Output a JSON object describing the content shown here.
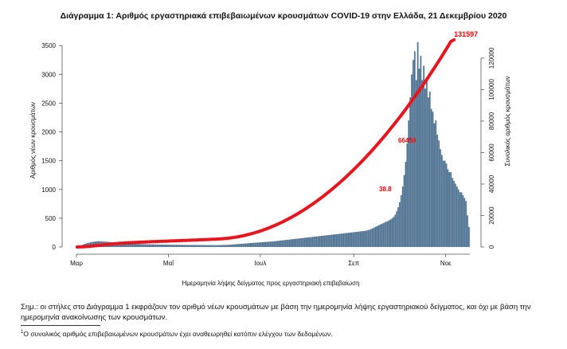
{
  "title": "Διάγραμμα 1: Αριθμός εργαστηριακά επιβεβαιωμένων κρουσμάτων COVID-19 στην Ελλάδα, 21 Δεκεμβρίου 2020",
  "note": "Σημ.: οι στήλες στο Διάγραμμα 1 εκφράζουν τον αριθμό νέων κρουσμάτων με βάση την ημερομηνία λήψης εργαστηριακού δείγματος, και όχι με βάση την ημερομηνία ανακοίνωσης των κρουσμάτων.",
  "footnote_mark": "1",
  "footnote": "Ο συνολικός αριθμός επιβεβαιωμένων κρουσμάτων έχει αναθεωρηθεί κατόπιν ελέγχου των δεδομένων.",
  "chart_data": {
    "type": "bar",
    "xlabel": "Ημερομηνία λήψης δείγματος προς εργαστηριακή επιβεβαίωση",
    "ylabel": "Αριθμός νέων κρουσμάτων",
    "y2label": "Συνολικός αριθμός κρουσμάτων",
    "ylim": [
      0,
      3600
    ],
    "y2lim": [
      0,
      131597
    ],
    "yticks": [
      "0",
      "500",
      "1000",
      "1500",
      "2000",
      "2500",
      "3000",
      "3500"
    ],
    "y2ticks": [
      "0",
      "20000",
      "40000",
      "60000",
      "80000",
      "100000",
      "120000"
    ],
    "x_tick_labels": [
      "Μαρ",
      "Μαΐ",
      "Ιουλ",
      "Σεπ",
      "Νοε"
    ],
    "x_tick_days": [
      0,
      61,
      122,
      184,
      245
    ],
    "bar_color": "#4a6f8f",
    "line_color": "#e8141e",
    "cumulative_label_color": "#ff0000",
    "series": [
      {
        "kind": "bar",
        "values": [
          10,
          18,
          25,
          30,
          42,
          55,
          60,
          68,
          75,
          82,
          88,
          92,
          95,
          98,
          100,
          100,
          98,
          96,
          94,
          92,
          90,
          88,
          85,
          82,
          80,
          78,
          75,
          72,
          70,
          68,
          66,
          64,
          62,
          60,
          58,
          57,
          56,
          55,
          54,
          53,
          52,
          52,
          51,
          50,
          49,
          48,
          47,
          46,
          46,
          45,
          45,
          44,
          44,
          43,
          43,
          42,
          42,
          42,
          41,
          41,
          40,
          40,
          40,
          39,
          39,
          39,
          38,
          38,
          38,
          37,
          37,
          37,
          36,
          36,
          36,
          36,
          35,
          35,
          35,
          35,
          34,
          34,
          34,
          34,
          34,
          34,
          33,
          33,
          33,
          33,
          33,
          33,
          33,
          33,
          33,
          34,
          34,
          35,
          36,
          37,
          38,
          40,
          42,
          44,
          46,
          48,
          50,
          52,
          54,
          56,
          58,
          60,
          62,
          64,
          66,
          68,
          70,
          72,
          74,
          76,
          78,
          80,
          82,
          84,
          86,
          88,
          90,
          92,
          94,
          96,
          98,
          100,
          103,
          106,
          109,
          112,
          115,
          118,
          121,
          124,
          127,
          130,
          133,
          136,
          139,
          142,
          145,
          148,
          151,
          154,
          157,
          160,
          163,
          166,
          169,
          172,
          175,
          178,
          181,
          184,
          187,
          190,
          193,
          196,
          199,
          202,
          205,
          208,
          211,
          214,
          217,
          220,
          223,
          226,
          229,
          232,
          235,
          238,
          241,
          244,
          247,
          250,
          253,
          256,
          259,
          262,
          265,
          268,
          271,
          274,
          277,
          280,
          287,
          293,
          300,
          313,
          325,
          338,
          350,
          363,
          375,
          388,
          400,
          413,
          425,
          438,
          450,
          464,
          480,
          500,
          522,
          560,
          620,
          690,
          780,
          900,
          1050,
          1250,
          1480,
          1800,
          2200,
          2600,
          3000,
          3250,
          3400,
          2900,
          3560,
          3100,
          3320,
          2900,
          3150,
          2750,
          2950,
          2600,
          2700,
          2400,
          2350,
          2150,
          2200,
          1950,
          1850,
          1700,
          1600,
          1500,
          1500,
          1450,
          1350,
          1300,
          1300,
          1200,
          1150,
          1100,
          1050,
          1000,
          950,
          950,
          900,
          850,
          800,
          550,
          350
        ]
      },
      {
        "kind": "line",
        "name": "cumulative",
        "values": [
          9,
          30,
          60,
          100,
          150,
          210,
          280,
          350,
          430,
          520,
          610,
          700,
          800,
          910,
          1020,
          1130,
          1240,
          1350,
          1460,
          1560,
          1650,
          1740,
          1830,
          1920,
          2000,
          2080,
          2160,
          2240,
          2310,
          2380,
          2450,
          2510,
          2570,
          2630,
          2690,
          2740,
          2790,
          2840,
          2890,
          2940,
          2990,
          3030,
          3070,
          3110,
          3150,
          3190,
          3230,
          3270,
          3310,
          3350,
          3390,
          3430,
          3470,
          3500,
          3540,
          3580,
          3610,
          3650,
          3690,
          3720,
          3760,
          3800,
          3840,
          3870,
          3910,
          3950,
          3990,
          4020,
          4060,
          4100,
          4140,
          4170,
          4210,
          4250,
          4290,
          4320,
          4360,
          4400,
          4440,
          4470,
          4510,
          4550,
          4590,
          4620,
          4660,
          4700,
          4740,
          4780,
          4820,
          4860,
          4900,
          4950,
          5000,
          5050,
          5110,
          5170,
          5240,
          5320,
          5400,
          5490,
          5590,
          5700,
          5820,
          5950,
          6090,
          6240,
          6400,
          6570,
          6750,
          6940,
          7140,
          7350,
          7570,
          7800,
          8040,
          8290,
          8550,
          8820,
          9100,
          9390,
          9690,
          10000,
          10320,
          10650,
          10990,
          11340,
          11700,
          12070,
          12450,
          12840,
          13240,
          13650,
          14070,
          14500,
          14940,
          15390,
          15850,
          16320,
          16800,
          17290,
          17790,
          18300,
          18820,
          19350,
          19890,
          20440,
          21000,
          21570,
          22150,
          22740,
          23340,
          23950,
          24570,
          25200,
          25840,
          26490,
          27150,
          27820,
          28500,
          29190,
          29890,
          30600,
          31320,
          32050,
          32790,
          33540,
          34300,
          35070,
          35850,
          36640,
          37440,
          38250,
          39070,
          39900,
          40740,
          41590,
          42450,
          43320,
          44200,
          45090,
          45990,
          46900,
          47820,
          48750,
          49690,
          50640,
          51600,
          52570,
          53550,
          54540,
          55540,
          56550,
          57570,
          58600,
          59640,
          60690,
          61750,
          62820,
          63900,
          64990,
          66090,
          67200,
          68320,
          69450,
          70590,
          71740,
          72900,
          74070,
          75250,
          76440,
          77640,
          78850,
          80070,
          81300,
          82540,
          83790,
          85050,
          86320,
          87600,
          88890,
          90190,
          91500,
          92820,
          94150,
          95490,
          96840,
          98200,
          99570,
          100950,
          102340,
          103740,
          105150,
          106570,
          108000,
          109440,
          110890,
          112350,
          113820,
          115300,
          116790,
          118290,
          119800,
          121320,
          122850,
          124390,
          125940,
          127500,
          129070,
          130650,
          131100,
          131597
        ]
      }
    ],
    "annotations": [
      {
        "text": "131597",
        "color": "#ff0000"
      },
      {
        "text": "66450",
        "color": "#ff0000"
      },
      {
        "text": "38.8",
        "color": "#ff0000"
      }
    ]
  }
}
